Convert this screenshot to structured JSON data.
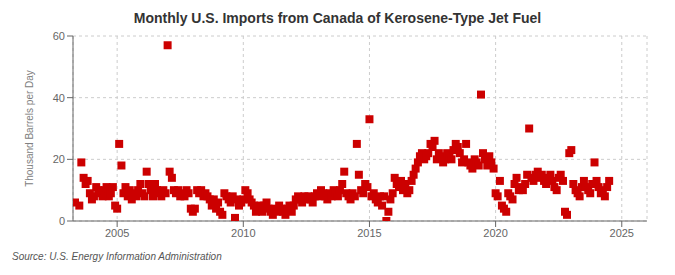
{
  "chart_data": {
    "type": "scatter",
    "title": "Monthly U.S. Imports from Canada of Kerosene-Type Jet Fuel",
    "ylabel": "Thousand Barrels per Day",
    "annotation": "Source: U.S. Energy Information Administration",
    "color": "#cc0000",
    "marker": "square",
    "grid": true,
    "xlim": [
      2003.25,
      2026.0
    ],
    "xticks": [
      2005,
      2010,
      2015,
      2020,
      2025
    ],
    "ylim": [
      0,
      60
    ],
    "yticks": [
      0,
      20,
      40,
      60
    ],
    "x": [
      2003.33,
      2003.5,
      2003.58,
      2003.67,
      2003.75,
      2003.83,
      2003.92,
      2004.0,
      2004.08,
      2004.17,
      2004.25,
      2004.33,
      2004.42,
      2004.5,
      2004.58,
      2004.67,
      2004.75,
      2004.83,
      2004.92,
      2005.0,
      2005.08,
      2005.17,
      2005.25,
      2005.33,
      2005.42,
      2005.5,
      2005.58,
      2005.67,
      2005.75,
      2005.83,
      2005.92,
      2006.0,
      2006.08,
      2006.17,
      2006.25,
      2006.33,
      2006.42,
      2006.5,
      2006.58,
      2006.67,
      2006.75,
      2006.83,
      2006.92,
      2007.0,
      2007.08,
      2007.17,
      2007.25,
      2007.33,
      2007.42,
      2007.5,
      2007.58,
      2007.67,
      2007.75,
      2007.83,
      2007.92,
      2008.0,
      2008.08,
      2008.17,
      2008.25,
      2008.33,
      2008.42,
      2008.5,
      2008.58,
      2008.67,
      2008.75,
      2008.83,
      2008.92,
      2009.0,
      2009.08,
      2009.17,
      2009.25,
      2009.33,
      2009.42,
      2009.5,
      2009.58,
      2009.67,
      2009.75,
      2009.83,
      2009.92,
      2010.0,
      2010.08,
      2010.17,
      2010.25,
      2010.33,
      2010.42,
      2010.5,
      2010.58,
      2010.67,
      2010.75,
      2010.83,
      2010.92,
      2011.0,
      2011.08,
      2011.17,
      2011.25,
      2011.33,
      2011.42,
      2011.5,
      2011.58,
      2011.67,
      2011.75,
      2011.83,
      2011.92,
      2012.0,
      2012.08,
      2012.17,
      2012.25,
      2012.33,
      2012.42,
      2012.5,
      2012.58,
      2012.67,
      2012.75,
      2012.83,
      2012.92,
      2013.0,
      2013.08,
      2013.17,
      2013.25,
      2013.33,
      2013.42,
      2013.5,
      2013.58,
      2013.67,
      2013.75,
      2013.83,
      2013.92,
      2014.0,
      2014.08,
      2014.17,
      2014.25,
      2014.33,
      2014.42,
      2014.5,
      2014.58,
      2014.67,
      2014.75,
      2014.83,
      2014.92,
      2015.0,
      2015.08,
      2015.17,
      2015.25,
      2015.33,
      2015.42,
      2015.5,
      2015.58,
      2015.67,
      2015.75,
      2015.83,
      2015.92,
      2016.0,
      2016.08,
      2016.17,
      2016.25,
      2016.33,
      2016.42,
      2016.5,
      2016.58,
      2016.67,
      2016.75,
      2016.83,
      2016.92,
      2017.0,
      2017.08,
      2017.17,
      2017.25,
      2017.33,
      2017.42,
      2017.5,
      2017.58,
      2017.67,
      2017.75,
      2017.83,
      2017.92,
      2018.0,
      2018.08,
      2018.17,
      2018.25,
      2018.33,
      2018.42,
      2018.5,
      2018.58,
      2018.67,
      2018.75,
      2018.83,
      2018.92,
      2019.0,
      2019.08,
      2019.17,
      2019.25,
      2019.33,
      2019.42,
      2019.5,
      2019.58,
      2019.67,
      2019.75,
      2019.83,
      2019.92,
      2020.0,
      2020.08,
      2020.17,
      2020.25,
      2020.33,
      2020.42,
      2020.5,
      2020.58,
      2020.67,
      2020.75,
      2020.83,
      2020.92,
      2021.0,
      2021.08,
      2021.17,
      2021.25,
      2021.33,
      2021.42,
      2021.5,
      2021.58,
      2021.67,
      2021.75,
      2021.83,
      2021.92,
      2022.0,
      2022.08,
      2022.17,
      2022.25,
      2022.33,
      2022.42,
      2022.5,
      2022.58,
      2022.67,
      2022.75,
      2022.83,
      2022.92,
      2023.0,
      2023.08,
      2023.17,
      2023.25,
      2023.33,
      2023.42,
      2023.5,
      2023.58,
      2023.67,
      2023.75,
      2023.83,
      2023.92,
      2024.0,
      2024.08,
      2024.17,
      2024.25,
      2024.33,
      2024.42,
      2024.5
    ],
    "values": [
      6,
      5,
      19,
      14,
      12,
      13,
      9,
      7,
      8,
      11,
      10,
      9,
      8,
      10,
      11,
      8,
      9,
      11,
      5,
      4,
      25,
      18,
      9,
      11,
      8,
      10,
      7,
      9,
      8,
      10,
      12,
      9,
      8,
      16,
      12,
      10,
      8,
      12,
      10,
      9,
      8,
      10,
      9,
      57,
      16,
      14,
      10,
      9,
      10,
      8,
      9,
      8,
      10,
      9,
      4,
      3,
      4,
      10,
      9,
      10,
      8,
      9,
      8,
      7,
      5,
      7,
      4,
      6,
      3,
      2,
      9,
      8,
      7,
      6,
      8,
      1,
      7,
      5,
      6,
      7,
      10,
      9,
      7,
      6,
      5,
      3,
      4,
      5,
      3,
      5,
      6,
      4,
      3,
      2,
      4,
      3,
      5,
      4,
      3,
      2,
      4,
      5,
      3,
      5,
      7,
      8,
      7,
      6,
      8,
      7,
      8,
      7,
      6,
      8,
      9,
      8,
      10,
      9,
      8,
      7,
      9,
      8,
      10,
      9,
      8,
      10,
      12,
      16,
      9,
      8,
      7,
      9,
      8,
      25,
      15,
      10,
      9,
      12,
      11,
      33,
      8,
      9,
      7,
      6,
      8,
      5,
      8,
      0,
      3,
      7,
      9,
      14,
      12,
      11,
      13,
      10,
      12,
      9,
      10,
      13,
      15,
      17,
      19,
      21,
      22,
      20,
      21,
      22,
      25,
      24,
      26,
      20,
      22,
      21,
      19,
      20,
      22,
      21,
      20,
      23,
      25,
      24,
      22,
      19,
      20,
      25,
      19,
      18,
      17,
      20,
      19,
      18,
      41,
      22,
      20,
      18,
      21,
      19,
      17,
      9,
      8,
      13,
      5,
      4,
      3,
      9,
      8,
      7,
      12,
      14,
      10,
      11,
      10,
      12,
      15,
      30,
      14,
      13,
      15,
      16,
      14,
      15,
      13,
      12,
      14,
      15,
      13,
      11,
      10,
      14,
      15,
      13,
      3,
      2,
      22,
      23,
      12,
      10,
      9,
      8,
      11,
      13,
      11,
      10,
      9,
      12,
      19,
      13,
      11,
      9,
      10,
      8,
      11,
      13
    ]
  }
}
